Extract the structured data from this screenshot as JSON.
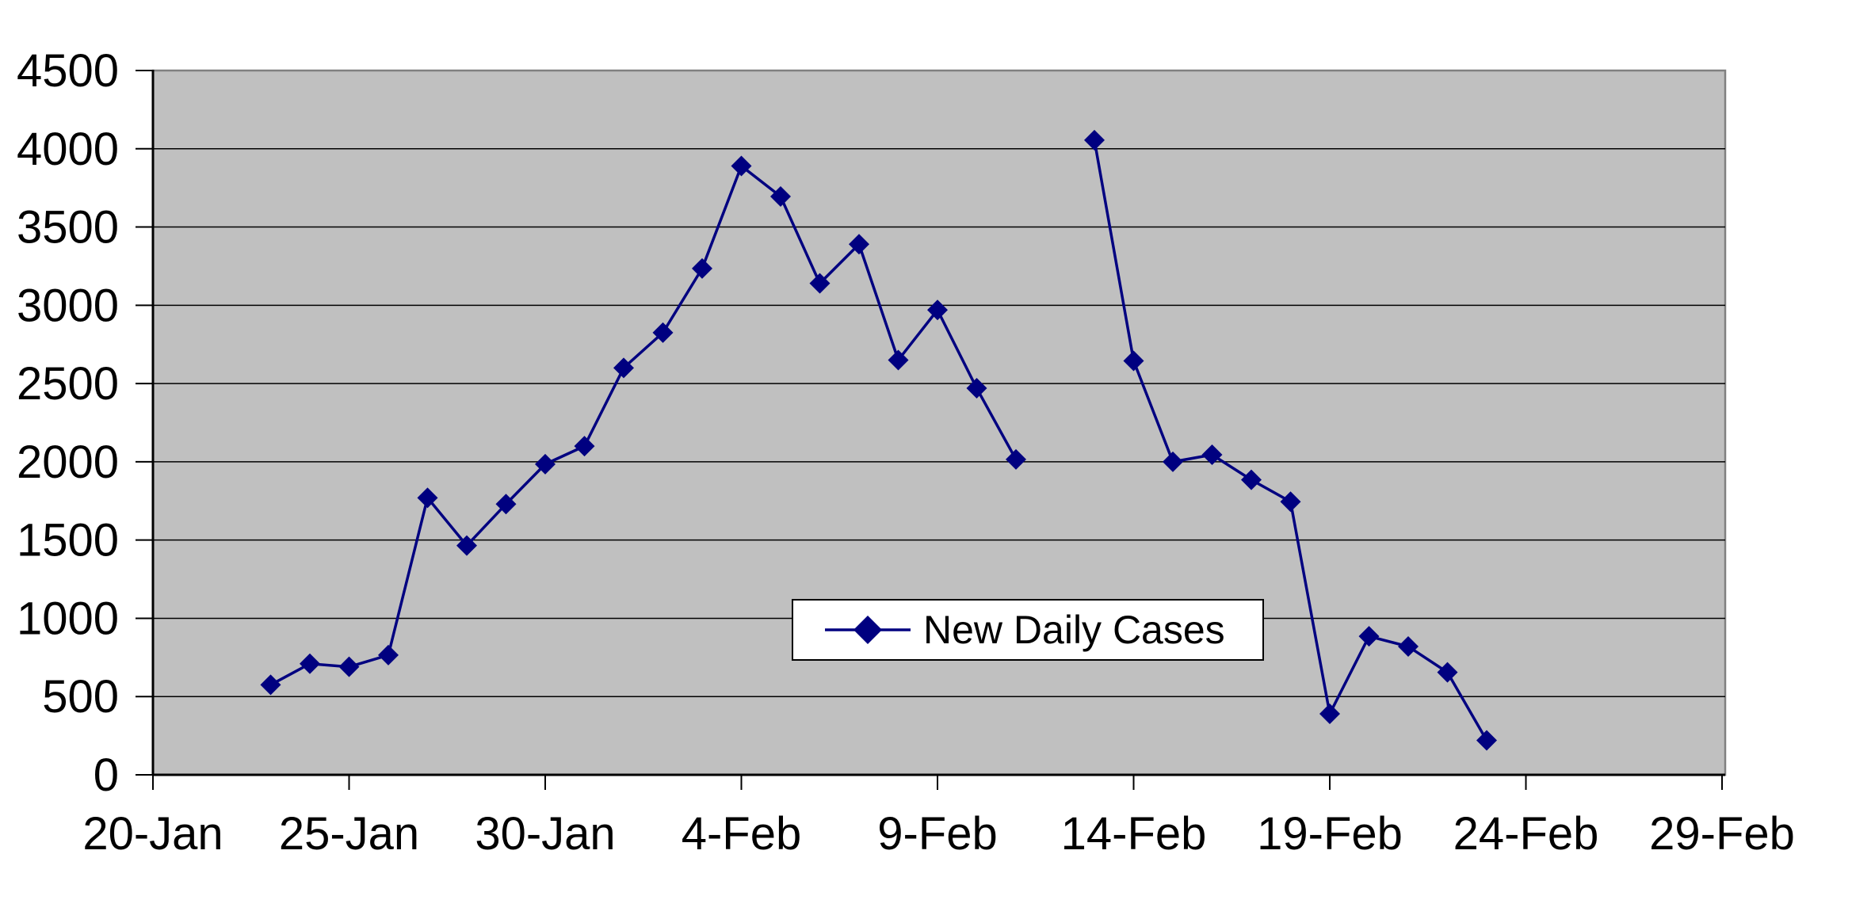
{
  "chart_data": {
    "type": "line",
    "title": "",
    "xlabel": "",
    "ylabel": "",
    "ylim": [
      0,
      4500
    ],
    "y_tick_interval": 500,
    "y_tick_labels": [
      "0",
      "500",
      "1000",
      "1500",
      "2000",
      "2500",
      "3000",
      "3500",
      "4000",
      "4500"
    ],
    "x_ticks": [
      {
        "label": "20-Jan",
        "day": 0
      },
      {
        "label": "25-Jan",
        "day": 5
      },
      {
        "label": "30-Jan",
        "day": 10
      },
      {
        "label": "4-Feb",
        "day": 15
      },
      {
        "label": "9-Feb",
        "day": 20
      },
      {
        "label": "14-Feb",
        "day": 25
      },
      {
        "label": "19-Feb",
        "day": 30
      },
      {
        "label": "24-Feb",
        "day": 35
      },
      {
        "label": "29-Feb",
        "day": 40
      }
    ],
    "x_axis_range_days": [
      0,
      40
    ],
    "grid": "horizontal",
    "legend_position": "overlay-center",
    "series": [
      {
        "name": "New Daily Cases",
        "marker": "diamond",
        "first_day_offset": 3,
        "x": [
          "23-Jan",
          "24-Jan",
          "25-Jan",
          "26-Jan",
          "27-Jan",
          "28-Jan",
          "29-Jan",
          "30-Jan",
          "31-Jan",
          "1-Feb",
          "2-Feb",
          "3-Feb",
          "4-Feb",
          "5-Feb",
          "6-Feb",
          "7-Feb",
          "8-Feb",
          "9-Feb",
          "10-Feb",
          "11-Feb",
          "12-Feb",
          "13-Feb",
          "14-Feb",
          "15-Feb",
          "16-Feb",
          "17-Feb",
          "18-Feb",
          "19-Feb",
          "20-Feb",
          "21-Feb",
          "22-Feb",
          "23-Feb"
        ],
        "values": [
          575,
          710,
          690,
          765,
          1770,
          1465,
          1730,
          1985,
          2100,
          2600,
          2825,
          3235,
          3890,
          3695,
          3140,
          3390,
          2650,
          2970,
          2470,
          2015,
          null,
          4055,
          2645,
          2000,
          2045,
          1885,
          1745,
          390,
          885,
          820,
          655,
          220
        ]
      }
    ],
    "colors": {
      "line": "#000080",
      "marker": "#000080",
      "plot_background": "#c0c0c0",
      "plot_border": "#808080",
      "gridline": "#000000",
      "axis": "#000000",
      "tick": "#000000",
      "label_text": "#000000",
      "legend_background": "#ffffff",
      "legend_border": "#000000",
      "page_background": "#ffffff"
    }
  }
}
